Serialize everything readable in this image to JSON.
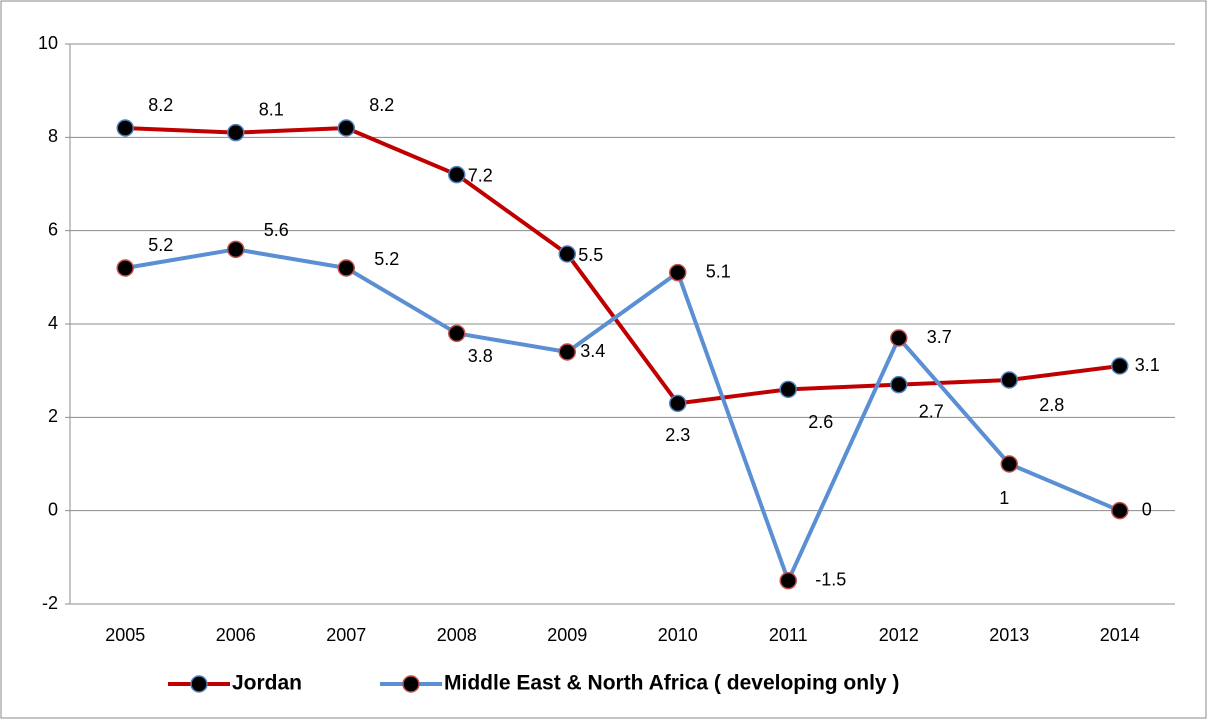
{
  "chart_data": {
    "type": "line",
    "categories": [
      "2005",
      "2006",
      "2007",
      "2008",
      "2009",
      "2010",
      "2011",
      "2012",
      "2013",
      "2014"
    ],
    "series": [
      {
        "name": "Jordan",
        "color": "#c00000",
        "marker_edge": "#4f81bd",
        "values": [
          8.2,
          8.1,
          8.2,
          7.2,
          5.5,
          2.3,
          2.6,
          2.7,
          2.8,
          3.1
        ]
      },
      {
        "name": "Middle East & North Africa ( developing only )",
        "color": "#5b8fd4",
        "marker_edge": "#c0504d",
        "values": [
          5.2,
          5.6,
          5.2,
          3.8,
          3.4,
          5.1,
          -1.5,
          3.7,
          1,
          0
        ]
      }
    ],
    "ylim": [
      -2,
      10
    ],
    "yticks": [
      -2,
      0,
      2,
      4,
      6,
      8,
      10
    ],
    "grid": true,
    "legend": "bottom"
  }
}
